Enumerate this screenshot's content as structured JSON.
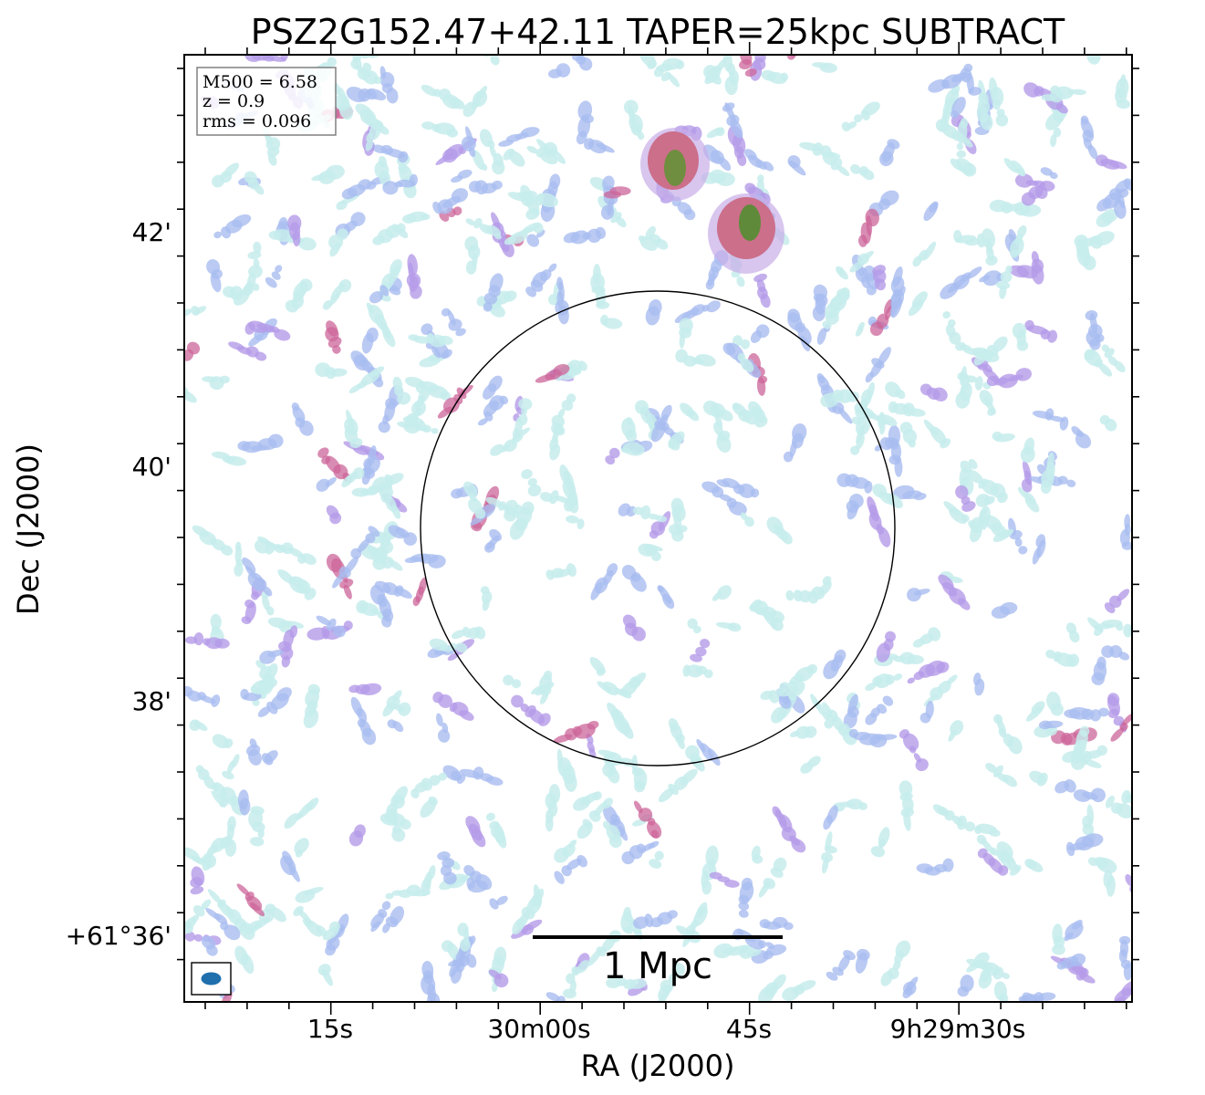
{
  "chart_data": {
    "type": "heatmap",
    "title": "PSZ2G152.47+42.11 TAPER=25kpc SUBTRACT",
    "xlabel": "RA (J2000)",
    "ylabel": "Dec (J2000)",
    "x_ticks": [
      "15s",
      "30m00s",
      "45s",
      "9h29m30s"
    ],
    "y_ticks": [
      "42'",
      "40'",
      "38'",
      "+61°36'"
    ],
    "info_box": {
      "line1": "M500 = 6.58",
      "line2": "z = 0.9",
      "line3": "rms = 0.096"
    },
    "scale_bar_label": "1 Mpc",
    "colormap": [
      "#c7ecec",
      "#a9bdf0",
      "#b59be8",
      "#cc6699",
      "#c05a7a",
      "#5f8a3a"
    ],
    "bright_sources": [
      {
        "ra_offset_arcmin": -0.3,
        "dec_offset_arcmin": 3.1,
        "peak": 1.0
      },
      {
        "ra_offset_arcmin": -0.8,
        "dec_offset_arcmin": 2.55,
        "peak": 1.0
      }
    ],
    "circle_present": true,
    "beam_marker": true,
    "grid": false
  }
}
